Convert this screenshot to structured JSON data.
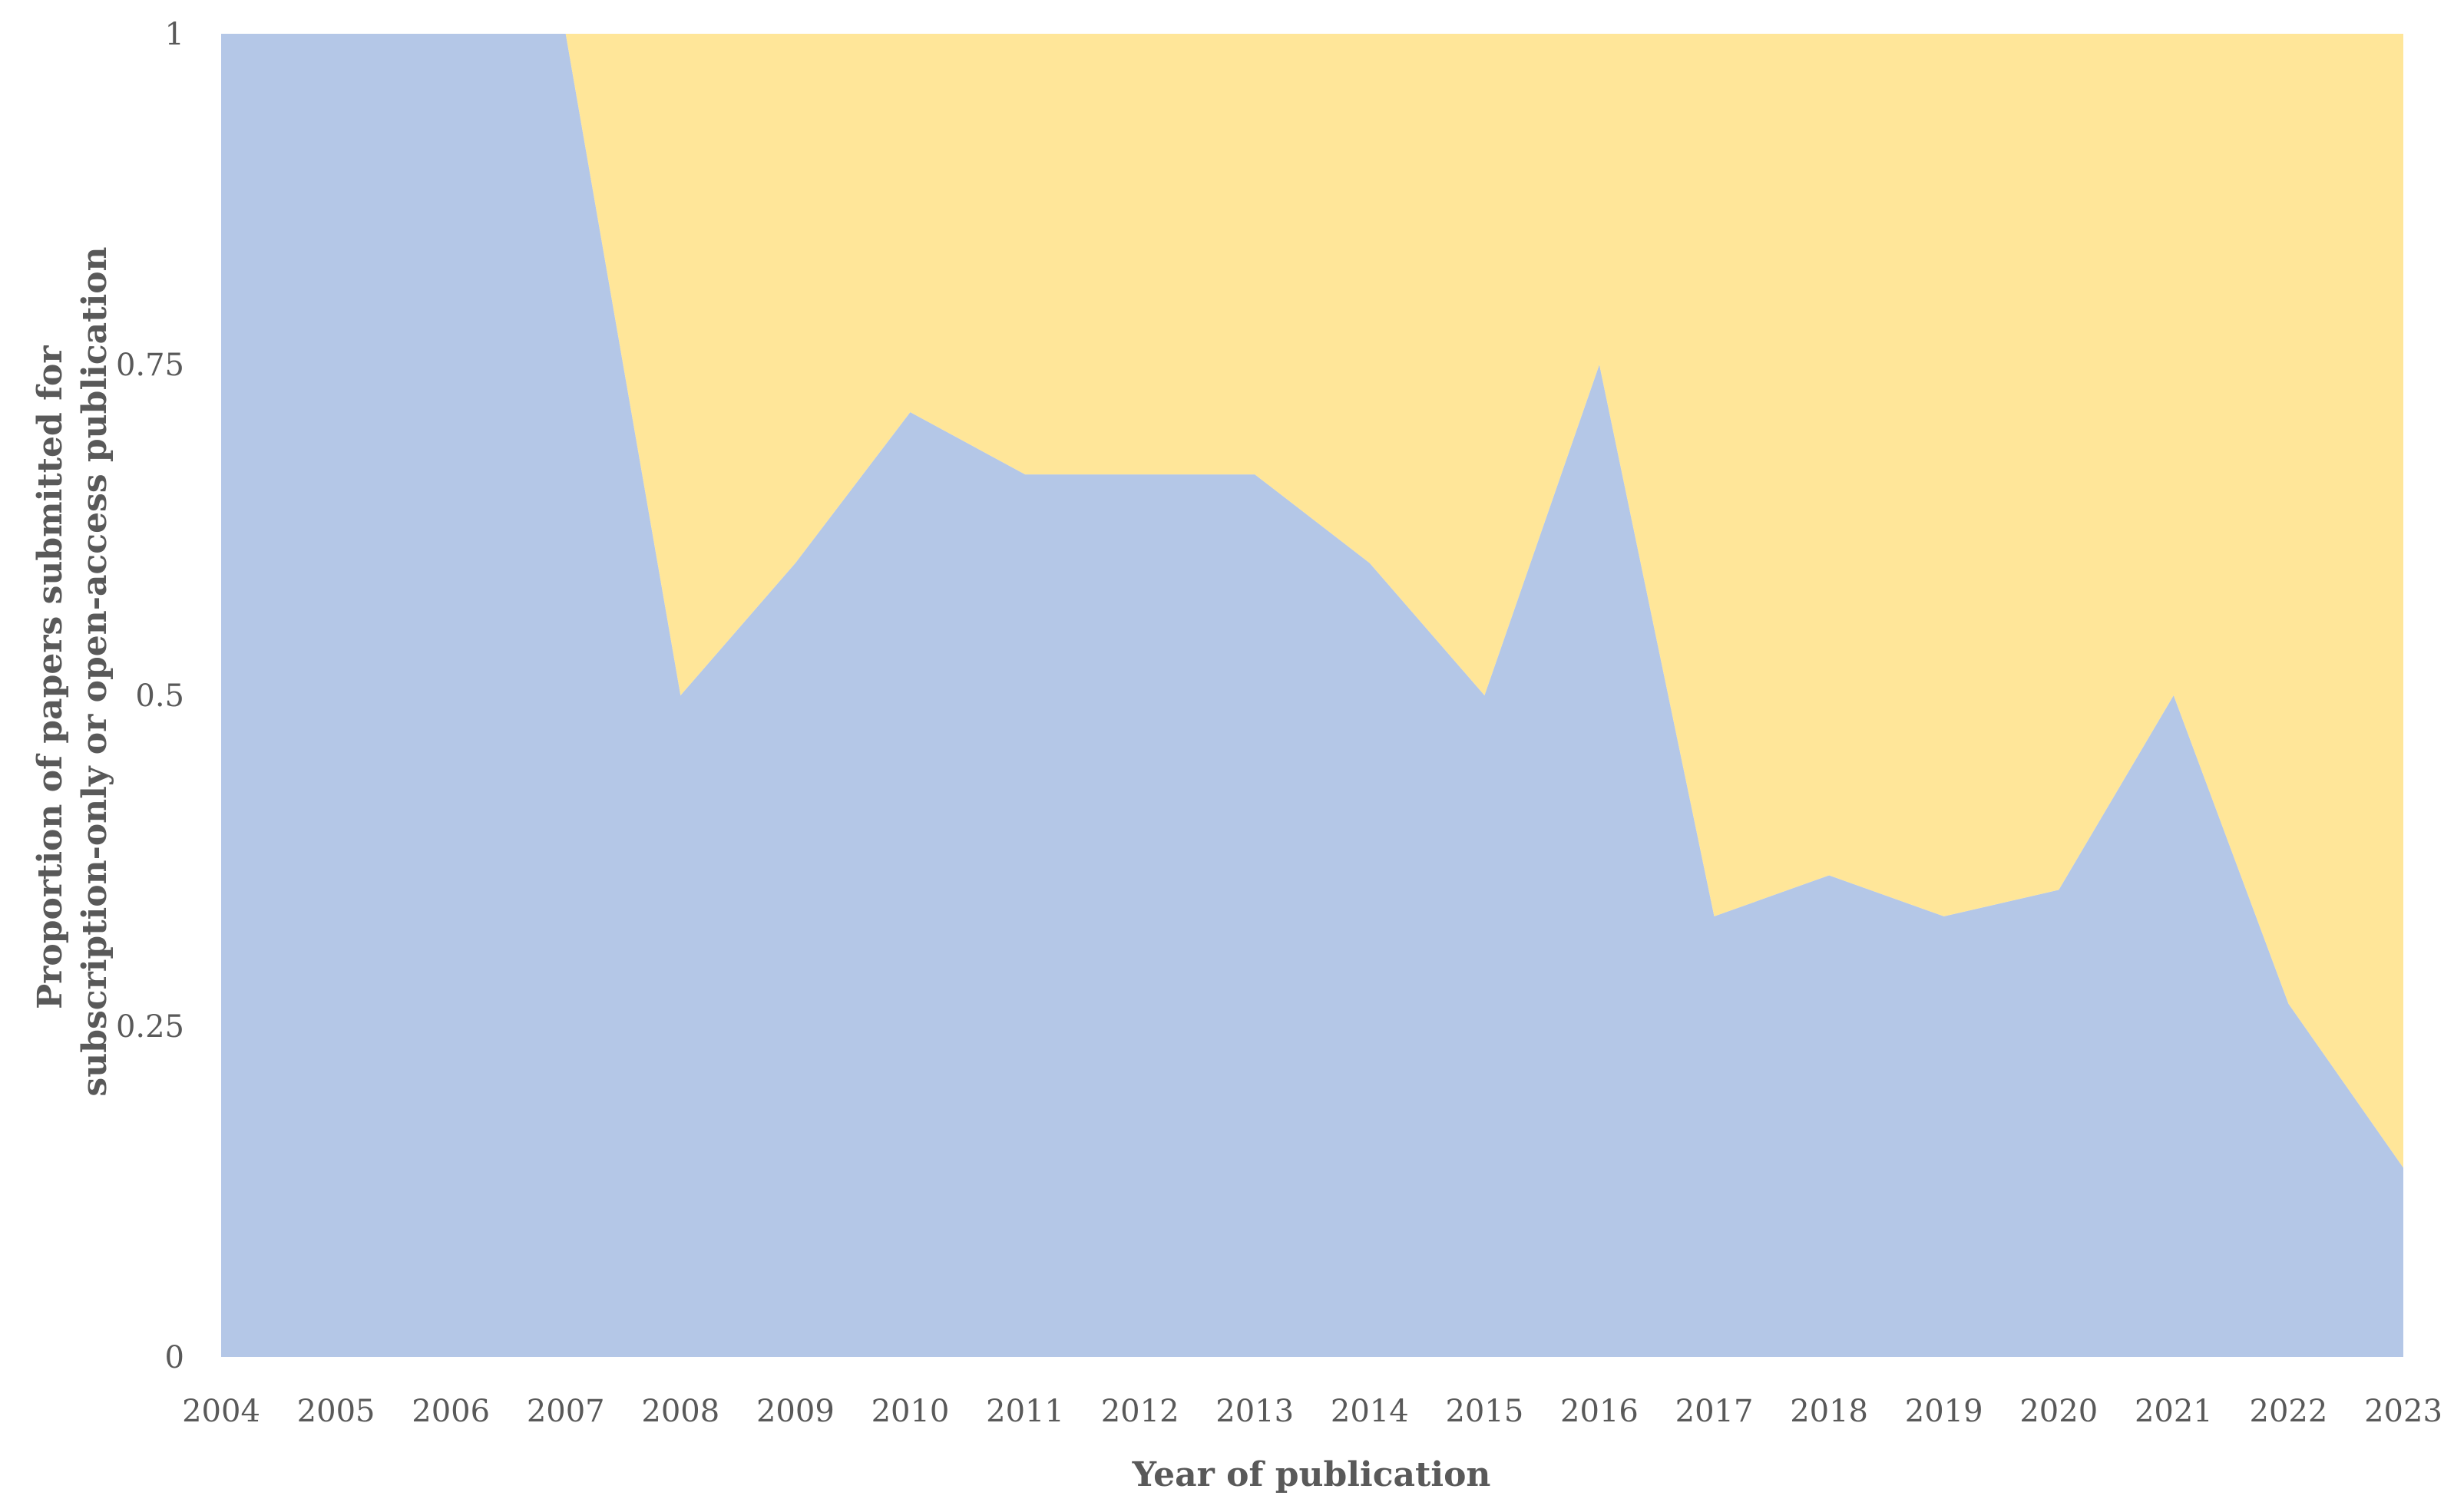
{
  "chart_data": {
    "type": "area",
    "stacked": true,
    "normalized": true,
    "title": "",
    "xlabel": "Year of publication",
    "ylabel_lines": [
      "Proportion of papers submitted for",
      "subscription-only or open-access publication"
    ],
    "categories": [
      "2004",
      "2005",
      "2006",
      "2007",
      "2008",
      "2009",
      "2010",
      "2011",
      "2012",
      "2013",
      "2014",
      "2015",
      "2016",
      "2017",
      "2018",
      "2019",
      "2020",
      "2021",
      "2022",
      "2023"
    ],
    "series": [
      {
        "color": "#b4c7e7",
        "values": [
          1,
          1,
          1,
          1,
          0.5,
          0.6,
          0.714,
          0.667,
          0.667,
          0.667,
          0.6,
          0.5,
          0.75,
          0.333,
          0.364,
          0.333,
          0.353,
          0.5,
          0.267,
          0.143
        ]
      },
      {
        "color": "#ffe699",
        "values": [
          0,
          0,
          0,
          0,
          0.5,
          0.4,
          0.286,
          0.333,
          0.333,
          0.333,
          0.4,
          0.5,
          0.25,
          0.667,
          0.636,
          0.667,
          0.647,
          0.5,
          0.733,
          0.857
        ]
      }
    ],
    "ylim": [
      0,
      1
    ],
    "yticks": [
      0,
      0.25,
      0.5,
      0.75,
      1
    ],
    "ytick_labels": [
      "0",
      "0.25",
      "0.5",
      "0.75",
      "1"
    ],
    "grid": false,
    "legend": "none"
  }
}
